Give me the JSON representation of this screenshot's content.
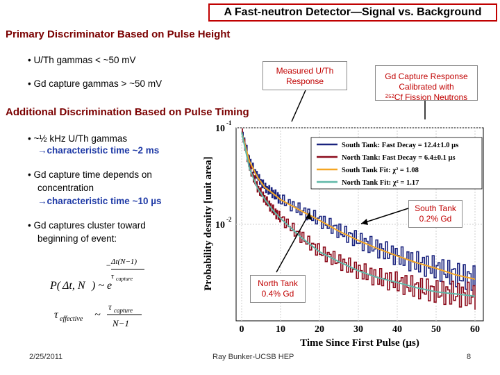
{
  "slide": {
    "title": "A Fast-neutron Detector—Signal vs. Background",
    "section1": "Primary Discriminator Based on Pulse Height",
    "bullet1": "• U/Th gammas < ~50 mV",
    "bullet2": "• Gd capture gammas > ~50 mV",
    "section2": "Additional Discrimination Based on Pulse Timing",
    "bullet3": "• ~½ kHz U/Th gammas",
    "bullet3_sub": "characteristic time ~2 ms",
    "bullet4_line1": "• Gd capture time depends on",
    "bullet4_line2": "concentration",
    "bullet4_sub": "characteristic time ~10 µs",
    "bullet5_line1": "• Gd captures cluster toward",
    "bullet5_line2": "beginning of event:",
    "callout_uth_1": "Measured U/Th",
    "callout_uth_2": "Response",
    "callout_gd_1": "Gd Capture Response",
    "callout_gd_2": "Calibrated with",
    "callout_gd_3": "²⁵²Cf Fission Neutrons",
    "callout_south_1": "South Tank",
    "callout_south_2": "0.2% Gd",
    "callout_north_1": "North Tank",
    "callout_north_2": "0.4% Gd",
    "footer_date": "2/25/2011",
    "footer_author": "Ray Bunker-UCSB HEP",
    "footer_page": "8",
    "arrow_glyph": "→"
  },
  "colors": {
    "title_border": "#c00000",
    "section": "#7a0000",
    "arrow_text": "#1f3aa6",
    "callout_text": "#c00000",
    "south_data": "#1a237e",
    "north_data": "#8b0a1a",
    "south_fit": "#f5a623",
    "north_fit": "#5fb8a8"
  },
  "chart_data": {
    "type": "line",
    "xlabel": "Time Since First Pulse (µs)",
    "ylabel": "Probability desnity [unit area]",
    "xlim": [
      0,
      60
    ],
    "ylim": [
      0.001,
      0.1
    ],
    "yscale": "log",
    "x_ticks": [
      "0",
      "10",
      "20",
      "30",
      "40",
      "50",
      "60"
    ],
    "y_ticks": [
      "10",
      "10"
    ],
    "y_tick_exponents": [
      "-1",
      "-2"
    ],
    "grid": true,
    "legend_position": "top-right",
    "series": [
      {
        "name": "South Tank: Fast Decay = 12.4±1.0 µs",
        "style": "data",
        "x": [
          0,
          2,
          4,
          6,
          8,
          10,
          15,
          20,
          25,
          30,
          35,
          40,
          45,
          50,
          55,
          60
        ],
        "y": [
          0.09,
          0.045,
          0.031,
          0.024,
          0.021,
          0.018,
          0.014,
          0.011,
          0.0085,
          0.0068,
          0.0056,
          0.0047,
          0.004,
          0.0035,
          0.003,
          0.0027
        ]
      },
      {
        "name": "North Tank: Fast Decay = 6.4±0.1 µs",
        "style": "data",
        "x": [
          0,
          2,
          4,
          6,
          8,
          10,
          15,
          20,
          25,
          30,
          35,
          40,
          45,
          50,
          55,
          60
        ],
        "y": [
          0.09,
          0.038,
          0.024,
          0.018,
          0.014,
          0.0115,
          0.0075,
          0.0052,
          0.0041,
          0.0033,
          0.0028,
          0.0025,
          0.0022,
          0.002,
          0.0019,
          0.0018
        ]
      },
      {
        "name": "South Tank Fit: χ² = 1.08",
        "style": "fit",
        "x": [
          0,
          2,
          4,
          6,
          8,
          10,
          15,
          20,
          25,
          30,
          35,
          40,
          45,
          50,
          55,
          60
        ],
        "y": [
          0.09,
          0.045,
          0.031,
          0.024,
          0.021,
          0.018,
          0.014,
          0.011,
          0.0085,
          0.0068,
          0.0056,
          0.0047,
          0.004,
          0.0035,
          0.003,
          0.0027
        ]
      },
      {
        "name": "North Tank Fit: χ² = 1.17",
        "style": "fit",
        "x": [
          0,
          2,
          4,
          6,
          8,
          10,
          15,
          20,
          25,
          30,
          35,
          40,
          45,
          50,
          55,
          60
        ],
        "y": [
          0.09,
          0.038,
          0.024,
          0.018,
          0.014,
          0.0115,
          0.0075,
          0.0052,
          0.0041,
          0.0033,
          0.0028,
          0.0025,
          0.0022,
          0.002,
          0.0019,
          0.0018
        ]
      }
    ]
  }
}
